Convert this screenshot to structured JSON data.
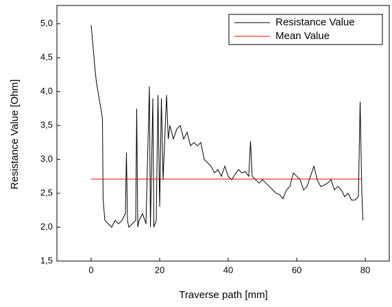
{
  "chart_data": {
    "type": "line",
    "xlabel": "Traverse path [mm]",
    "ylabel": "Resistance Value [Ohm]",
    "xlim": [
      -10,
      87
    ],
    "ylim": [
      1.5,
      5.27
    ],
    "xticks": [
      0,
      20,
      40,
      60,
      80
    ],
    "yticks": [
      {
        "value": 1.5,
        "label": "1,5"
      },
      {
        "value": 2,
        "label": "2,0"
      },
      {
        "value": 2.5,
        "label": "2,5"
      },
      {
        "value": 3,
        "label": "3,0"
      },
      {
        "value": 3.5,
        "label": "3,5"
      },
      {
        "value": 4,
        "label": "4,0"
      },
      {
        "value": 4.5,
        "label": "4,5"
      },
      {
        "value": 5,
        "label": "5,0"
      }
    ],
    "legend": "upper right",
    "series": [
      {
        "name": "Resistance Value",
        "color": "#000000",
        "x": [
          0,
          0.5,
          1,
          1.5,
          2,
          2.5,
          3,
          3.3,
          3.5,
          4,
          5,
          6,
          7,
          8,
          9,
          10,
          10.3,
          10.6,
          11,
          12,
          13,
          13.3,
          13.6,
          14,
          15,
          16,
          17,
          17.3,
          18,
          18.3,
          19,
          19.5,
          20,
          20.5,
          21,
          22,
          22.5,
          23,
          24,
          25,
          26,
          27,
          28,
          29,
          30,
          31,
          32,
          33,
          34,
          35,
          36,
          37,
          38,
          39,
          40,
          41,
          42,
          43,
          44,
          45,
          46,
          46.5,
          47,
          48,
          49,
          50,
          51,
          52,
          53,
          54,
          55,
          56,
          57,
          58,
          59,
          60,
          61,
          62,
          63,
          64,
          65,
          66,
          67,
          68,
          69,
          70,
          71,
          72,
          73,
          74,
          75,
          76,
          77,
          78,
          78.5,
          79,
          79.3
        ],
        "values": [
          4.98,
          4.7,
          4.4,
          4.15,
          4.0,
          3.85,
          3.7,
          3.6,
          2.4,
          2.1,
          2.05,
          2.0,
          2.1,
          2.05,
          2.1,
          2.2,
          3.1,
          2.1,
          2.0,
          2.05,
          2.1,
          3.75,
          2.0,
          2.1,
          2.2,
          2.05,
          4.08,
          2.0,
          3.9,
          2.0,
          2.1,
          3.95,
          2.3,
          3.9,
          2.7,
          3.95,
          3.3,
          3.5,
          3.3,
          3.45,
          3.5,
          3.3,
          3.4,
          3.2,
          3.25,
          3.2,
          3.25,
          3.0,
          2.95,
          2.9,
          2.8,
          2.85,
          2.75,
          2.9,
          2.75,
          2.7,
          2.78,
          2.85,
          2.8,
          2.82,
          2.75,
          3.27,
          2.75,
          2.7,
          2.65,
          2.7,
          2.65,
          2.6,
          2.55,
          2.5,
          2.48,
          2.42,
          2.55,
          2.6,
          2.8,
          2.75,
          2.7,
          2.55,
          2.6,
          2.75,
          2.9,
          2.7,
          2.6,
          2.62,
          2.65,
          2.7,
          2.55,
          2.6,
          2.55,
          2.45,
          2.5,
          2.4,
          2.4,
          2.45,
          3.85,
          2.5,
          2.1
        ]
      },
      {
        "name": "Mean Value",
        "color": "#ff0000",
        "x": [
          0,
          79
        ],
        "values": [
          2.71,
          2.71
        ]
      }
    ]
  }
}
